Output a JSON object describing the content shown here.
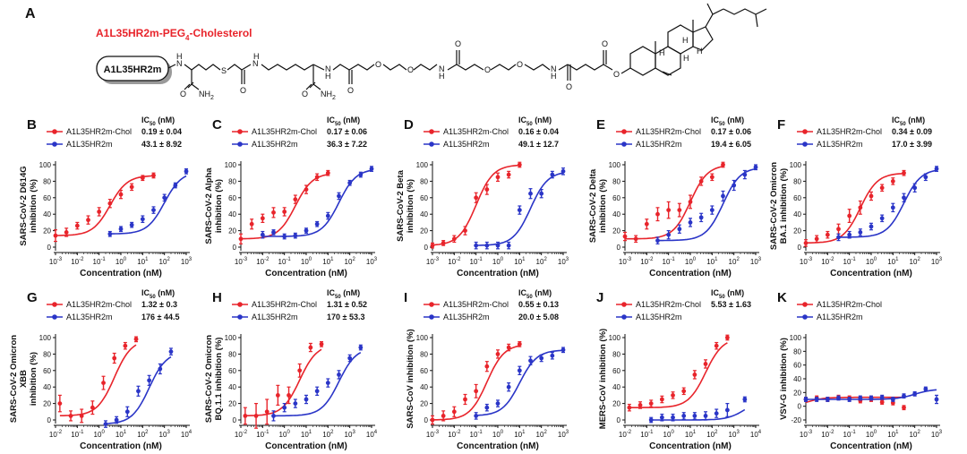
{
  "panelA": {
    "letter": "A",
    "compound_prefix": "A1L35HR2m-PEG",
    "compound_sub": "4",
    "compound_suffix": "-Cholesterol",
    "peptide_box": "A1L35HR2m",
    "atoms": {
      "S": "S",
      "H": "H",
      "N": "N",
      "O": "O",
      "NH2": "NH",
      "NH2_sub": "2"
    }
  },
  "colors": {
    "chol": "#e8242b",
    "plain": "#2a35c7"
  },
  "ic50_header_main": "IC",
  "ic50_header_sub": "50",
  "ic50_header_unit": " (nM)",
  "xlabel": "Concentration (nM)",
  "chart_data": [
    {
      "letter": "B",
      "type": "scatter",
      "ylabel_lines": [
        "SARS-CoV-2 D614G",
        "inhibition (%)"
      ],
      "xlim_log10": [
        -3,
        3
      ],
      "ylim": [
        0,
        100
      ],
      "yticks": [
        0,
        20,
        40,
        60,
        80,
        100
      ],
      "xticks": [
        -3,
        -2,
        -1,
        0,
        1,
        2,
        3
      ],
      "series": [
        {
          "name": "A1L35HR2m-Chol",
          "ic50": "0.19 ± 0.04",
          "color": "#e8242b",
          "x": [
            -3,
            -2.5,
            -2,
            -1.5,
            -1,
            -0.5,
            0,
            0.5,
            1,
            1.5
          ],
          "y": [
            14,
            18,
            26,
            33,
            43,
            53,
            64,
            73,
            84,
            87
          ],
          "err": [
            7,
            5,
            4,
            5,
            5,
            5,
            5,
            4,
            3,
            3
          ]
        },
        {
          "name": "A1L35HR2m",
          "ic50": "43.1 ± 8.92",
          "color": "#2a35c7",
          "x": [
            -0.5,
            0,
            0.5,
            1,
            1.5,
            2,
            2.5,
            3
          ],
          "y": [
            16,
            22,
            27,
            34,
            45,
            60,
            75,
            92
          ],
          "err": [
            3,
            3,
            3,
            4,
            4,
            4,
            3,
            3
          ]
        }
      ]
    },
    {
      "letter": "C",
      "type": "scatter",
      "ylabel_lines": [
        "SARS-CoV-2 Alpha",
        "inhibition (%)"
      ],
      "xlim_log10": [
        -3,
        3
      ],
      "ylim": [
        0,
        100
      ],
      "yticks": [
        0,
        20,
        40,
        60,
        80,
        100
      ],
      "xticks": [
        -3,
        -2,
        -1,
        0,
        1,
        2,
        3
      ],
      "series": [
        {
          "name": "A1L35HR2m-Chol",
          "ic50": "0.17 ± 0.06",
          "color": "#e8242b",
          "x": [
            -3,
            -2.5,
            -2,
            -1.5,
            -1,
            -0.5,
            0,
            0.5,
            1
          ],
          "y": [
            10,
            28,
            35,
            42,
            43,
            58,
            70,
            85,
            90
          ],
          "err": [
            6,
            6,
            5,
            6,
            5,
            5,
            5,
            4,
            3
          ]
        },
        {
          "name": "A1L35HR2m",
          "ic50": "36.3 ± 7.22",
          "color": "#2a35c7",
          "x": [
            -2,
            -1.5,
            -1,
            -0.5,
            0,
            0.5,
            1,
            1.5,
            2,
            2.5,
            3
          ],
          "y": [
            15,
            18,
            13,
            14,
            20,
            28,
            38,
            62,
            78,
            88,
            95
          ],
          "err": [
            4,
            3,
            3,
            3,
            3,
            3,
            4,
            4,
            3,
            3,
            3
          ]
        }
      ]
    },
    {
      "letter": "D",
      "type": "scatter",
      "ylabel_lines": [
        "SARS-CoV-2 Beta",
        "inhibition (%)"
      ],
      "xlim_log10": [
        -3,
        3
      ],
      "ylim": [
        0,
        100
      ],
      "yticks": [
        0,
        20,
        40,
        60,
        80,
        100
      ],
      "xticks": [
        -3,
        -2,
        -1,
        0,
        1,
        2,
        3
      ],
      "series": [
        {
          "name": "A1L35HR2m-Chol",
          "ic50": "0.16 ± 0.04",
          "color": "#e8242b",
          "x": [
            -3,
            -2.5,
            -2,
            -1.5,
            -1,
            -0.5,
            0,
            0.5,
            1
          ],
          "y": [
            2,
            5,
            10,
            20,
            60,
            70,
            85,
            88,
            100
          ],
          "err": [
            3,
            3,
            4,
            5,
            6,
            6,
            5,
            4,
            3
          ]
        },
        {
          "name": "A1L35HR2m",
          "ic50": "49.1 ± 12.7",
          "color": "#2a35c7",
          "x": [
            -1,
            -0.5,
            0,
            0.5,
            1,
            1.5,
            2,
            2.5,
            3
          ],
          "y": [
            2,
            2,
            2,
            2,
            45,
            65,
            65,
            88,
            92
          ],
          "err": [
            4,
            4,
            4,
            4,
            5,
            6,
            5,
            4,
            4
          ]
        }
      ]
    },
    {
      "letter": "E",
      "type": "scatter",
      "ylabel_lines": [
        "SARS-CoV-2 Delta",
        "inhibition (%)"
      ],
      "xlim_log10": [
        -3,
        3
      ],
      "ylim": [
        0,
        100
      ],
      "yticks": [
        0,
        20,
        40,
        60,
        80,
        100
      ],
      "xticks": [
        -3,
        -2,
        -1,
        0,
        1,
        2,
        3
      ],
      "series": [
        {
          "name": "A1L35HR2m-Chol",
          "ic50": "0.17 ± 0.06",
          "color": "#e8242b",
          "x": [
            -3,
            -2.5,
            -2,
            -1.5,
            -1,
            -0.5,
            0,
            0.5,
            1,
            1.5
          ],
          "y": [
            13,
            10,
            28,
            40,
            45,
            45,
            55,
            80,
            85,
            100
          ],
          "err": [
            5,
            4,
            6,
            8,
            10,
            8,
            8,
            5,
            4,
            3
          ]
        },
        {
          "name": "A1L35HR2m",
          "ic50": "19.4 ± 6.05",
          "color": "#2a35c7",
          "x": [
            -1.5,
            -1,
            -0.5,
            0,
            0.5,
            1,
            1.5,
            2,
            2.5,
            3
          ],
          "y": [
            8,
            15,
            22,
            30,
            36,
            45,
            62,
            75,
            88,
            97
          ],
          "err": [
            4,
            5,
            5,
            5,
            5,
            5,
            6,
            6,
            5,
            3
          ]
        }
      ]
    },
    {
      "letter": "F",
      "type": "scatter",
      "ylabel_lines": [
        "SARS-CoV-2 Omicron",
        "BA.1 inhibition (%)"
      ],
      "xlim_log10": [
        -3,
        3
      ],
      "ylim": [
        0,
        100
      ],
      "yticks": [
        0,
        20,
        40,
        60,
        80,
        100
      ],
      "xticks": [
        -3,
        -2,
        -1,
        0,
        1,
        2,
        3
      ],
      "series": [
        {
          "name": "A1L35HR2m-Chol",
          "ic50": "0.34 ± 0.09",
          "color": "#e8242b",
          "x": [
            -3,
            -2.5,
            -2,
            -1.5,
            -1,
            -0.5,
            0,
            0.5,
            1,
            1.5
          ],
          "y": [
            5,
            10,
            15,
            22,
            38,
            48,
            62,
            72,
            80,
            90
          ],
          "err": [
            4,
            4,
            4,
            6,
            8,
            8,
            5,
            4,
            4,
            3
          ]
        },
        {
          "name": "A1L35HR2m",
          "ic50": "17.0 ± 3.99",
          "color": "#2a35c7",
          "x": [
            -1.5,
            -1,
            -0.5,
            0,
            0.5,
            1,
            1.5,
            2,
            2.5,
            3
          ],
          "y": [
            12,
            15,
            18,
            25,
            35,
            48,
            60,
            72,
            85,
            95
          ],
          "err": [
            4,
            4,
            4,
            4,
            4,
            5,
            5,
            5,
            4,
            3
          ]
        }
      ]
    },
    {
      "letter": "G",
      "type": "scatter",
      "ylabel_lines": [
        "SARS-CoV-2 Omicron",
        "XBB",
        "inhibition (%)"
      ],
      "xlim_log10": [
        -2,
        4
      ],
      "ylim": [
        0,
        100
      ],
      "yticks": [
        0,
        20,
        40,
        60,
        80,
        100
      ],
      "xticks": [
        -2,
        -1,
        0,
        1,
        2,
        3,
        4
      ],
      "series": [
        {
          "name": "A1L35HR2m-Chol",
          "ic50": "1.32 ± 0.3",
          "color": "#e8242b",
          "x": [
            -1.8,
            -1.3,
            -0.8,
            -0.3,
            0.2,
            0.7,
            1.2,
            1.7
          ],
          "y": [
            20,
            5,
            5,
            15,
            45,
            75,
            90,
            98
          ],
          "err": [
            10,
            6,
            8,
            8,
            8,
            6,
            4,
            3
          ]
        },
        {
          "name": "A1L35HR2m",
          "ic50": "176 ± 44.5",
          "color": "#2a35c7",
          "x": [
            0.3,
            0.8,
            1.3,
            1.8,
            2.3,
            2.8,
            3.3
          ],
          "y": [
            -5,
            0,
            10,
            35,
            48,
            62,
            83
          ],
          "err": [
            4,
            4,
            6,
            6,
            6,
            6,
            4
          ]
        }
      ]
    },
    {
      "letter": "H",
      "type": "scatter",
      "ylabel_lines": [
        "SARS-CoV-2 Omicron",
        "BQ.1.1 inhibition (%)"
      ],
      "xlim_log10": [
        -2,
        4
      ],
      "ylim": [
        0,
        100
      ],
      "yticks": [
        0,
        20,
        40,
        60,
        80,
        100
      ],
      "xticks": [
        -2,
        -1,
        0,
        1,
        2,
        3,
        4
      ],
      "series": [
        {
          "name": "A1L35HR2m-Chol",
          "ic50": "1.31 ± 0.52",
          "color": "#e8242b",
          "x": [
            -1.8,
            -1.3,
            -0.8,
            -0.3,
            0.2,
            0.7,
            1.2,
            1.7
          ],
          "y": [
            5,
            5,
            10,
            30,
            30,
            60,
            88,
            92
          ],
          "err": [
            10,
            15,
            15,
            12,
            10,
            8,
            5,
            3
          ]
        },
        {
          "name": "A1L35HR2m",
          "ic50": "170 ± 53.3",
          "color": "#2a35c7",
          "x": [
            -0.5,
            0,
            0.5,
            1,
            1.5,
            2,
            2.5,
            3,
            3.5
          ],
          "y": [
            5,
            15,
            20,
            25,
            35,
            45,
            55,
            75,
            88
          ],
          "err": [
            6,
            5,
            5,
            5,
            5,
            5,
            5,
            4,
            3
          ]
        }
      ]
    },
    {
      "letter": "I",
      "type": "scatter",
      "ylabel_lines": [
        "SARS-CoV inhibition (%)"
      ],
      "xlim_log10": [
        -3,
        3
      ],
      "ylim": [
        0,
        100
      ],
      "yticks": [
        0,
        20,
        40,
        60,
        80,
        100
      ],
      "xticks": [
        -3,
        -2,
        -1,
        0,
        1,
        2,
        3
      ],
      "series": [
        {
          "name": "A1L35HR2m-Chol",
          "ic50": "0.55 ± 0.13",
          "color": "#e8242b",
          "x": [
            -3,
            -2.5,
            -2,
            -1.5,
            -1,
            -0.5,
            0,
            0.5,
            1
          ],
          "y": [
            0,
            5,
            10,
            25,
            35,
            65,
            80,
            88,
            92
          ],
          "err": [
            5,
            6,
            6,
            6,
            8,
            6,
            5,
            4,
            3
          ]
        },
        {
          "name": "A1L35HR2m",
          "ic50": "20.0 ± 5.08",
          "color": "#2a35c7",
          "x": [
            -1,
            -0.5,
            0,
            0.5,
            1,
            1.5,
            2,
            2.5,
            3
          ],
          "y": [
            5,
            15,
            20,
            40,
            60,
            72,
            75,
            78,
            85
          ],
          "err": [
            4,
            4,
            4,
            5,
            5,
            5,
            4,
            4,
            3
          ]
        }
      ]
    },
    {
      "letter": "J",
      "type": "scatter",
      "ylabel_lines": [
        "MERS-CoV inhibition (%)"
      ],
      "xlim_log10": [
        -2,
        4
      ],
      "ylim": [
        0,
        100
      ],
      "yticks": [
        0,
        20,
        40,
        60,
        80,
        100
      ],
      "xticks": [
        -2,
        -1,
        0,
        1,
        2,
        3,
        4
      ],
      "series": [
        {
          "name": "A1L35HR2m-Chol",
          "ic50": "5.53 ± 1.63",
          "color": "#e8242b",
          "x": [
            -1.8,
            -1.3,
            -0.8,
            -0.3,
            0.2,
            0.7,
            1.2,
            1.7,
            2.2,
            2.7
          ],
          "y": [
            15,
            18,
            20,
            25,
            30,
            35,
            55,
            68,
            90,
            100
          ],
          "err": [
            4,
            4,
            4,
            4,
            4,
            4,
            5,
            5,
            4,
            3
          ]
        },
        {
          "name": "A1L35HR2m",
          "ic50": "",
          "color": "#2a35c7",
          "x": [
            -0.8,
            -0.3,
            0.2,
            0.7,
            1.2,
            1.7,
            2.2,
            2.7,
            3.5
          ],
          "y": [
            0,
            3,
            3,
            5,
            5,
            5,
            8,
            12,
            25
          ],
          "err": [
            3,
            4,
            4,
            4,
            4,
            5,
            5,
            8,
            3
          ]
        }
      ]
    },
    {
      "letter": "K",
      "type": "scatter",
      "ylabel_lines": [
        "VSV-G inhibition (%)"
      ],
      "xlim_log10": [
        -3,
        3
      ],
      "ylim": [
        -20,
        100
      ],
      "yticks": [
        -20,
        0,
        20,
        40,
        60,
        80,
        100
      ],
      "xticks": [
        -3,
        -2,
        -1,
        0,
        1,
        2,
        3
      ],
      "series": [
        {
          "name": "A1L35HR2m-Chol",
          "ic50": "",
          "color": "#e8242b",
          "x": [
            -3,
            -2.5,
            -2,
            -1.5,
            -1,
            -0.5,
            0,
            0.5,
            1,
            1.5
          ],
          "y": [
            10,
            12,
            10,
            13,
            12,
            8,
            10,
            6,
            5,
            -2
          ],
          "err": [
            3,
            3,
            3,
            3,
            3,
            3,
            3,
            3,
            3,
            3
          ]
        },
        {
          "name": "A1L35HR2m",
          "ic50": "",
          "color": "#2a35c7",
          "x": [
            -3,
            -2.5,
            -2,
            -1.5,
            -1,
            -0.5,
            0,
            0.5,
            1,
            1.5,
            2,
            2.5,
            3
          ],
          "y": [
            10,
            10,
            10,
            12,
            10,
            12,
            12,
            13,
            10,
            15,
            18,
            25,
            10
          ],
          "err": [
            3,
            3,
            3,
            3,
            3,
            3,
            3,
            3,
            3,
            3,
            3,
            3,
            6
          ]
        }
      ]
    }
  ]
}
